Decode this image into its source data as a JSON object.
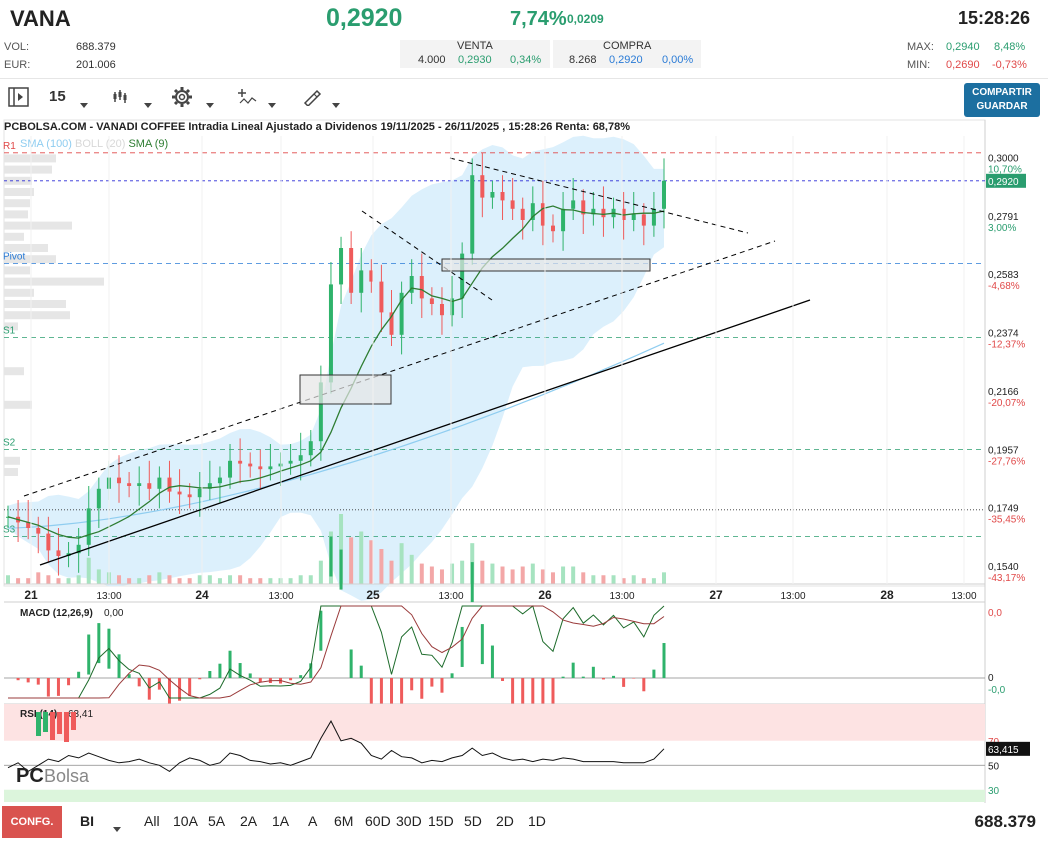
{
  "header": {
    "symbol": "VANA",
    "price": "0,2920",
    "change_pct": "7,74%",
    "change_abs": "0,0209",
    "time": "15:28:26",
    "vol_label": "VOL:",
    "vol_value": "688.379",
    "eur_label": "EUR:",
    "eur_value": "201.006",
    "venta_label": "VENTA",
    "venta_qty": "4.000",
    "venta_price": "0,2930",
    "venta_pct": "0,34%",
    "compra_label": "COMPRA",
    "compra_qty": "8.268",
    "compra_price": "0,2920",
    "compra_pct": "0,00%",
    "max_label": "MAX:",
    "max_price": "0,2940",
    "max_pct": "8,48%",
    "min_label": "MIN:",
    "min_price": "0,2690",
    "min_pct": "-0,73%"
  },
  "toolbar": {
    "interval": "15",
    "share_line1": "COMPARTIR",
    "share_line2": "GUARDAR"
  },
  "chart_title": "PCBOLSA.COM - VANADI COFFEE Intradia Lineal Ajustado a Dividenos 19/11/2025 - 26/11/2025 , 15:28:26 Renta: 68,78%",
  "legend": {
    "sma100": "SMA (100)",
    "boll": "BOLL (20)",
    "sma9": "SMA (9)"
  },
  "levels": {
    "r1": "R1",
    "pivot": "Pivot",
    "s1": "S1",
    "s2": "S2",
    "s3": "S3"
  },
  "colors": {
    "up": "#2fb36b",
    "down": "#ef5b5b",
    "sma9": "#2e7d32",
    "sma100": "#8fcdf0",
    "boll": "#d3ecfb"
  },
  "chart_data": [
    {
      "type": "candlestick",
      "title": "PCBOLSA.COM - VANADI COFFEE Intradia Lineal Ajustado a Dividenos 19/11/2025 - 26/11/2025 , 15:28:26 Renta: 68,78%",
      "ylim": [
        0.148,
        0.308
      ],
      "y_ticks": [
        {
          "price": "0,3000",
          "pct": "10,70%",
          "v": 0.3,
          "sign": "pos"
        },
        {
          "price": "0,2791",
          "pct": "3,00%",
          "v": 0.2791,
          "sign": "pos"
        },
        {
          "price": "0,2583",
          "pct": "-4,68%",
          "v": 0.2583,
          "sign": "neg"
        },
        {
          "price": "0,2374",
          "pct": "-12,37%",
          "v": 0.2374,
          "sign": "neg"
        },
        {
          "price": "0,2166",
          "pct": "-20,07%",
          "v": 0.2166,
          "sign": "neg"
        },
        {
          "price": "0,1957",
          "pct": "-27,76%",
          "v": 0.1957,
          "sign": "neg"
        },
        {
          "price": "0,1749",
          "pct": "-35,45%",
          "v": 0.1749,
          "sign": "neg"
        },
        {
          "price": "0,1540",
          "pct": "-43,17%",
          "v": 0.154,
          "sign": "neg"
        }
      ],
      "last_price": "0,2920",
      "last_value": 0.292,
      "x_ticks": [
        "21",
        "13:00",
        "24",
        "13:00",
        "25",
        "13:00",
        "26",
        "13:00",
        "27",
        "13:00",
        "28",
        "13:00"
      ],
      "levels": {
        "R1": 0.302,
        "Pivot": 0.2625,
        "S1": 0.236,
        "S2": 0.196,
        "S3": 0.165
      },
      "close": [
        0.172,
        0.17,
        0.168,
        0.166,
        0.16,
        0.158,
        0.159,
        0.162,
        0.175,
        0.182,
        0.186,
        0.184,
        0.183,
        0.184,
        0.182,
        0.186,
        0.181,
        0.18,
        0.179,
        0.182,
        0.184,
        0.186,
        0.192,
        0.191,
        0.19,
        0.189,
        0.19,
        0.191,
        0.192,
        0.194,
        0.199,
        0.22,
        0.255,
        0.268,
        0.252,
        0.26,
        0.256,
        0.245,
        0.237,
        0.252,
        0.258,
        0.25,
        0.248,
        0.244,
        0.25,
        0.266,
        0.294,
        0.286,
        0.288,
        0.285,
        0.282,
        0.278,
        0.284,
        0.276,
        0.274,
        0.282,
        0.285,
        0.28,
        0.282,
        0.279,
        0.282,
        0.278,
        0.28,
        0.276,
        0.282,
        0.292
      ],
      "volume_max": "-",
      "volume": [
        3,
        2,
        2,
        4,
        3,
        2,
        2,
        3,
        9,
        5,
        4,
        3,
        2,
        2,
        3,
        4,
        3,
        2,
        2,
        3,
        3,
        2,
        3,
        3,
        2,
        2,
        2,
        2,
        2,
        3,
        3,
        8,
        18,
        24,
        16,
        18,
        15,
        12,
        8,
        14,
        10,
        7,
        6,
        5,
        7,
        8,
        14,
        8,
        7,
        6,
        5,
        6,
        7,
        5,
        4,
        6,
        6,
        4,
        3,
        3,
        3,
        2,
        3,
        2,
        2,
        4
      ]
    },
    {
      "type": "line",
      "title": "MACD (12,26,9)",
      "value_label": "0,00",
      "y_ticks": [
        "0,0",
        "0",
        "-0,0"
      ]
    },
    {
      "type": "line",
      "title": "RSI (14)",
      "value_label": "63,41",
      "last_value": "63,415",
      "y_ticks": [
        70,
        50,
        30
      ],
      "values": [
        48,
        52,
        45,
        50,
        55,
        53,
        58,
        56,
        60,
        57,
        54,
        52,
        53,
        55,
        52,
        50,
        45,
        52,
        56,
        54,
        50,
        52,
        60,
        58,
        54,
        53,
        51,
        52,
        50,
        53,
        56,
        72,
        86,
        70,
        72,
        68,
        58,
        55,
        62,
        57,
        56,
        52,
        54,
        53,
        56,
        58,
        64,
        58,
        60,
        56,
        54,
        55,
        53,
        55,
        54,
        56,
        55,
        53,
        53,
        53,
        53,
        52,
        52,
        52,
        55,
        63.4
      ]
    }
  ],
  "bottom": {
    "config": "CONFG.",
    "type": "BI",
    "ranges": [
      "All",
      "10A",
      "5A",
      "2A",
      "1A",
      "A",
      "6M",
      "60D",
      "30D",
      "15D",
      "5D",
      "2D",
      "1D"
    ],
    "volume": "688.379"
  }
}
